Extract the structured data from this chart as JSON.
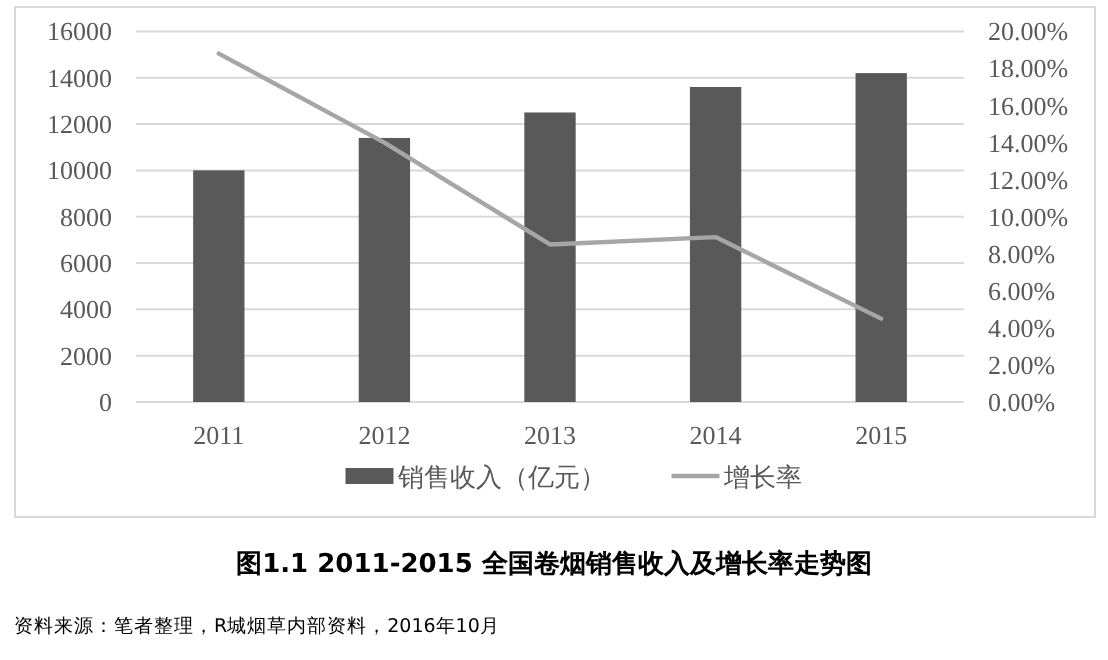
{
  "chart_data": {
    "type": "bar",
    "title": "图1.1 2011-2015 全国卷烟销售收入及增长率走势图",
    "categories": [
      "2011",
      "2012",
      "2013",
      "2014",
      "2015"
    ],
    "series": [
      {
        "name": "销售收入（亿元）",
        "color": "#595959",
        "values": [
          10000,
          11400,
          12500,
          13600,
          14200
        ]
      },
      {
        "name": "增长率",
        "type": "line",
        "axis": "y2",
        "color": "#a6a6a6",
        "values": [
          18.8,
          14.0,
          8.5,
          8.9,
          4.5
        ]
      }
    ],
    "ylim": [
      0,
      16000
    ],
    "yticks": [
      0,
      2000,
      4000,
      6000,
      8000,
      10000,
      12000,
      14000,
      16000
    ],
    "y2lim": [
      0,
      20
    ],
    "y2ticks": [
      {
        "value": 0,
        "label": "0.00%"
      },
      {
        "value": 2,
        "label": "2.00%"
      },
      {
        "value": 4,
        "label": "4.00%"
      },
      {
        "value": 6,
        "label": "6.00%"
      },
      {
        "value": 8,
        "label": "8.00%"
      },
      {
        "value": 10,
        "label": "10.00%"
      },
      {
        "value": 12,
        "label": "12.00%"
      },
      {
        "value": 14,
        "label": "14.00%"
      },
      {
        "value": 16,
        "label": "16.00%"
      },
      {
        "value": 18,
        "label": "18.00%"
      },
      {
        "value": 20,
        "label": "20.00%"
      }
    ],
    "grid": "y",
    "legend": "bottom",
    "annotations": [
      "资料来源：笔者整理，R城烟草内部资料，2016年10月"
    ]
  }
}
